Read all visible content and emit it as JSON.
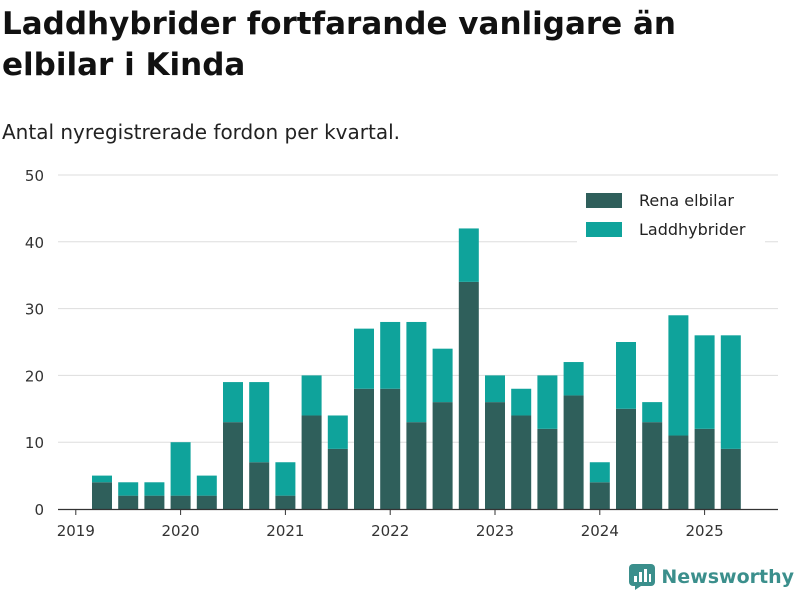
{
  "header": {
    "title": "Laddhybrider fortfarande vanligare än elbilar i Kinda",
    "subtitle": "Antal nyregistrerade fordon per kvartal."
  },
  "brand": {
    "name": "Newsworthy",
    "icon": "newsworthy-logo-icon"
  },
  "colors": {
    "elbilar": "#2f5f5b",
    "laddhybrider": "#0fa39b",
    "grid": "#dddddd",
    "axis": "#333333"
  },
  "chart_data": {
    "type": "bar",
    "stacked": true,
    "categories": [
      "2019 Q2",
      "2019 Q3",
      "2019 Q4",
      "2020 Q1",
      "2020 Q2",
      "2020 Q3",
      "2020 Q4",
      "2021 Q1",
      "2021 Q2",
      "2021 Q3",
      "2021 Q4",
      "2022 Q1",
      "2022 Q2",
      "2022 Q3",
      "2022 Q4",
      "2023 Q1",
      "2023 Q2",
      "2023 Q3",
      "2023 Q4",
      "2024 Q1",
      "2024 Q2",
      "2024 Q3",
      "2024 Q4",
      "2025 Q1",
      "2025 Q2"
    ],
    "x_tick_labels": [
      "2019",
      "2020",
      "2021",
      "2022",
      "2023",
      "2024",
      "2025"
    ],
    "series": [
      {
        "name": "Rena elbilar",
        "values": [
          4,
          2,
          2,
          2,
          2,
          13,
          7,
          2,
          14,
          9,
          18,
          18,
          13,
          16,
          34,
          16,
          14,
          12,
          17,
          4,
          15,
          13,
          11,
          12,
          9
        ]
      },
      {
        "name": "Laddhybrider",
        "values": [
          1,
          2,
          2,
          8,
          3,
          6,
          12,
          5,
          6,
          5,
          9,
          10,
          15,
          8,
          8,
          4,
          4,
          8,
          5,
          3,
          10,
          3,
          18,
          14,
          17
        ]
      }
    ],
    "y_ticks": [
      0,
      10,
      20,
      30,
      40,
      50
    ],
    "ylim": [
      0,
      50
    ],
    "grid": true,
    "legend_position": "top-right"
  }
}
